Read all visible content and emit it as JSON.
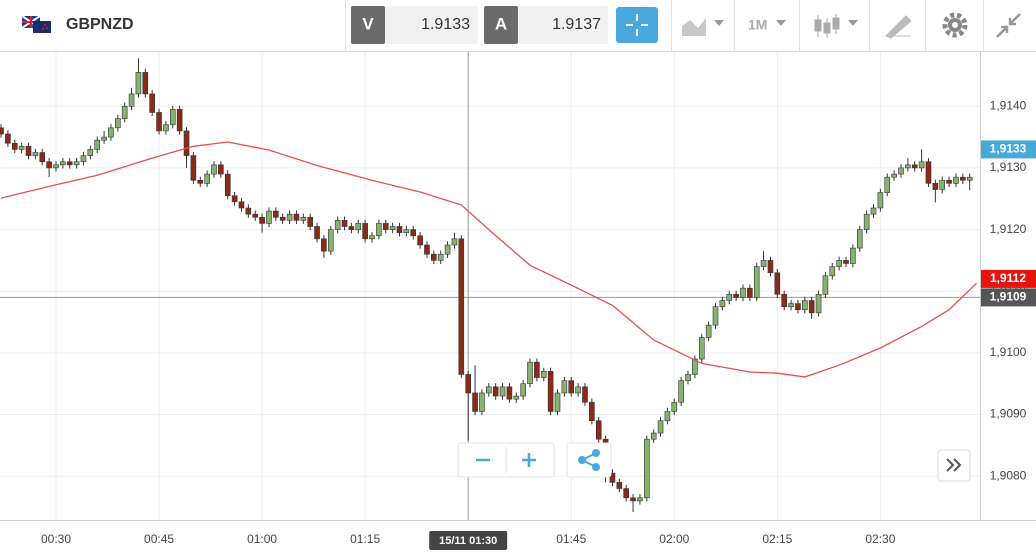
{
  "toolbar": {
    "symbol": "GBPNZD",
    "sell_label": "V",
    "sell_price": "1.9133",
    "buy_label": "A",
    "buy_price": "1.9137",
    "timeframe": "1M"
  },
  "chart_data": {
    "type": "candlestick",
    "up_color": "#86b26f",
    "down_color": "#8a2a18",
    "grid": true,
    "xlim": [
      21.85,
      164.5
    ],
    "ylim": [
      1.90729,
      1.91488
    ],
    "xticks": [
      {
        "value": 30,
        "label": "00:30"
      },
      {
        "value": 45,
        "label": "00:45"
      },
      {
        "value": 60,
        "label": "01:00"
      },
      {
        "value": 75,
        "label": "01:15"
      },
      {
        "value": 90,
        "label": "01:30"
      },
      {
        "value": 105,
        "label": "01:45"
      },
      {
        "value": 120,
        "label": "02:00"
      },
      {
        "value": 135,
        "label": "02:15"
      },
      {
        "value": 150,
        "label": "02:30"
      }
    ],
    "yticks": [
      {
        "value": 1.908,
        "label": "1,9080"
      },
      {
        "value": 1.909,
        "label": "1,9090"
      },
      {
        "value": 1.91,
        "label": "1,9100"
      },
      {
        "value": 1.911,
        "label": "1,9110"
      },
      {
        "value": 1.912,
        "label": "1,9120"
      },
      {
        "value": 1.913,
        "label": "1,9130"
      },
      {
        "value": 1.914,
        "label": "1,9140"
      }
    ],
    "x": [
      22,
      23,
      24,
      25,
      26,
      27,
      28,
      29,
      30,
      31,
      32,
      33,
      34,
      35,
      36,
      37,
      38,
      39,
      40,
      41,
      42,
      43,
      44,
      45,
      46,
      47,
      48,
      49,
      50,
      51,
      52,
      53,
      54,
      55,
      56,
      57,
      58,
      59,
      60,
      61,
      62,
      63,
      64,
      65,
      66,
      67,
      68,
      69,
      70,
      71,
      72,
      73,
      74,
      75,
      76,
      77,
      78,
      79,
      80,
      81,
      82,
      83,
      84,
      85,
      86,
      87,
      88,
      89,
      90,
      91,
      92,
      93,
      94,
      95,
      96,
      97,
      98,
      99,
      100,
      101,
      102,
      103,
      104,
      105,
      106,
      107,
      108,
      109,
      110,
      111,
      112,
      113,
      114,
      115,
      116,
      117,
      118,
      119,
      120,
      121,
      122,
      123,
      124,
      125,
      126,
      127,
      128,
      129,
      130,
      131,
      132,
      133,
      134,
      135,
      136,
      137,
      138,
      139,
      140,
      141,
      142,
      143,
      144,
      145,
      146,
      147,
      148,
      149,
      150,
      151,
      152,
      153,
      154,
      155,
      156,
      157,
      158,
      159,
      160,
      161,
      162,
      163
    ],
    "open": [
      1.91365,
      1.91355,
      1.9134,
      1.9133,
      1.91335,
      1.9132,
      1.91325,
      1.9131,
      1.913,
      1.91305,
      1.9131,
      1.91305,
      1.9131,
      1.9132,
      1.9133,
      1.91345,
      1.9135,
      1.91365,
      1.9138,
      1.914,
      1.9142,
      1.91455,
      1.9142,
      1.9139,
      1.9136,
      1.9137,
      1.91395,
      1.9136,
      1.9132,
      1.9128,
      1.91275,
      1.9129,
      1.91305,
      1.9129,
      1.91255,
      1.91245,
      1.91235,
      1.91225,
      1.9122,
      1.9121,
      1.9123,
      1.9122,
      1.91215,
      1.91225,
      1.91215,
      1.9122,
      1.91205,
      1.91185,
      1.91165,
      1.912,
      1.91215,
      1.91205,
      1.912,
      1.9121,
      1.91185,
      1.9119,
      1.9121,
      1.912,
      1.91205,
      1.91195,
      1.912,
      1.9119,
      1.91175,
      1.9116,
      1.9115,
      1.9116,
      1.91175,
      1.91185,
      1.90965,
      1.90935,
      1.90905,
      1.90935,
      1.90945,
      1.9093,
      1.90945,
      1.90925,
      1.9093,
      1.9095,
      1.90985,
      1.9096,
      1.9097,
      1.90905,
      1.90935,
      1.90955,
      1.90935,
      1.90945,
      1.9092,
      1.9089,
      1.9086,
      1.90805,
      1.9079,
      1.9078,
      1.90765,
      1.9076,
      1.90765,
      1.9086,
      1.9087,
      1.9089,
      1.90905,
      1.9092,
      1.90955,
      1.90965,
      1.9099,
      1.91025,
      1.91045,
      1.91075,
      1.91085,
      1.91095,
      1.9109,
      1.91105,
      1.9109,
      1.9114,
      1.9115,
      1.9113,
      1.91095,
      1.91075,
      1.9108,
      1.9107,
      1.91085,
      1.91065,
      1.91095,
      1.91125,
      1.9114,
      1.9115,
      1.91145,
      1.9117,
      1.912,
      1.91225,
      1.91235,
      1.9126,
      1.91285,
      1.9129,
      1.913,
      1.91305,
      1.913,
      1.9131,
      1.91275,
      1.91265,
      1.9128,
      1.91275,
      1.91285,
      1.9128
    ],
    "high": [
      1.91371,
      1.91361,
      1.91346,
      1.91341,
      1.91341,
      1.91331,
      1.91331,
      1.91316,
      1.91311,
      1.91316,
      1.91316,
      1.91316,
      1.91326,
      1.91336,
      1.91351,
      1.9136,
      1.91371,
      1.91386,
      1.91406,
      1.9143,
      1.91478,
      1.91461,
      1.91426,
      1.91396,
      1.91376,
      1.91401,
      1.91401,
      1.91366,
      1.91326,
      1.91286,
      1.91296,
      1.91311,
      1.91311,
      1.91296,
      1.91261,
      1.91251,
      1.91241,
      1.91231,
      1.91226,
      1.91236,
      1.91236,
      1.91226,
      1.91231,
      1.91231,
      1.91226,
      1.91226,
      1.91211,
      1.91191,
      1.91206,
      1.91221,
      1.91221,
      1.91211,
      1.91216,
      1.91216,
      1.91196,
      1.91216,
      1.91216,
      1.91211,
      1.91211,
      1.91206,
      1.91206,
      1.91196,
      1.91181,
      1.91166,
      1.91166,
      1.91181,
      1.91195,
      1.91191,
      1.90971,
      1.9098,
      1.90941,
      1.90951,
      1.90951,
      1.90951,
      1.90951,
      1.90936,
      1.90956,
      1.90991,
      1.90991,
      1.90976,
      1.90976,
      1.90941,
      1.90961,
      1.90961,
      1.90951,
      1.90951,
      1.90926,
      1.90896,
      1.90866,
      1.90811,
      1.90796,
      1.90786,
      1.90771,
      1.90771,
      1.90866,
      1.90876,
      1.90896,
      1.90911,
      1.90926,
      1.90961,
      1.90971,
      1.90996,
      1.91031,
      1.91051,
      1.91081,
      1.91091,
      1.91101,
      1.91101,
      1.91111,
      1.91111,
      1.91146,
      1.91165,
      1.91156,
      1.91136,
      1.91101,
      1.91086,
      1.91086,
      1.91091,
      1.91091,
      1.91101,
      1.91131,
      1.91146,
      1.91156,
      1.91156,
      1.91176,
      1.91206,
      1.91231,
      1.91241,
      1.91266,
      1.91291,
      1.91296,
      1.91306,
      1.91316,
      1.91311,
      1.9133,
      1.91316,
      1.91281,
      1.91286,
      1.91286,
      1.91291,
      1.91291,
      1.91291
    ],
    "low": [
      1.91349,
      1.91334,
      1.91324,
      1.91324,
      1.91314,
      1.91314,
      1.91304,
      1.91285,
      1.91294,
      1.91299,
      1.91299,
      1.91299,
      1.91304,
      1.91314,
      1.91324,
      1.91339,
      1.91344,
      1.91359,
      1.91374,
      1.91394,
      1.91414,
      1.91414,
      1.91384,
      1.91354,
      1.91354,
      1.91364,
      1.91354,
      1.913,
      1.91274,
      1.91269,
      1.91269,
      1.91284,
      1.91284,
      1.91249,
      1.91239,
      1.91229,
      1.91219,
      1.91214,
      1.91195,
      1.91204,
      1.91214,
      1.91209,
      1.91209,
      1.91209,
      1.91209,
      1.91199,
      1.91179,
      1.91154,
      1.91159,
      1.91194,
      1.91199,
      1.91194,
      1.91194,
      1.91179,
      1.91179,
      1.91184,
      1.91194,
      1.91194,
      1.91189,
      1.91189,
      1.91184,
      1.91169,
      1.91154,
      1.91144,
      1.91144,
      1.91154,
      1.91169,
      1.90959,
      1.90858,
      1.90899,
      1.90899,
      1.90929,
      1.90924,
      1.90924,
      1.90919,
      1.90919,
      1.90924,
      1.90944,
      1.90954,
      1.90954,
      1.90899,
      1.90899,
      1.90929,
      1.90929,
      1.90929,
      1.90914,
      1.90884,
      1.90854,
      1.9079,
      1.90784,
      1.90774,
      1.90759,
      1.90742,
      1.90754,
      1.90759,
      1.90854,
      1.90864,
      1.90884,
      1.90899,
      1.90914,
      1.90949,
      1.90959,
      1.90984,
      1.91019,
      1.91039,
      1.91069,
      1.91079,
      1.91084,
      1.91084,
      1.91084,
      1.91084,
      1.91134,
      1.91124,
      1.91089,
      1.91069,
      1.91069,
      1.91064,
      1.91064,
      1.91055,
      1.91059,
      1.91089,
      1.91119,
      1.91134,
      1.91139,
      1.91139,
      1.91164,
      1.91194,
      1.91219,
      1.91229,
      1.91254,
      1.91279,
      1.91284,
      1.91294,
      1.91294,
      1.91294,
      1.91269,
      1.91244,
      1.91259,
      1.91269,
      1.91269,
      1.91274,
      1.91264
    ],
    "close": [
      1.91355,
      1.9134,
      1.9133,
      1.91335,
      1.9132,
      1.91325,
      1.9131,
      1.913,
      1.91305,
      1.9131,
      1.91305,
      1.9131,
      1.9132,
      1.9133,
      1.91345,
      1.9135,
      1.91365,
      1.9138,
      1.914,
      1.9142,
      1.91455,
      1.9142,
      1.9139,
      1.9136,
      1.9137,
      1.91395,
      1.9136,
      1.9132,
      1.9128,
      1.91275,
      1.9129,
      1.91305,
      1.9129,
      1.91255,
      1.91245,
      1.91235,
      1.91225,
      1.9122,
      1.9121,
      1.9123,
      1.9122,
      1.91215,
      1.91225,
      1.91215,
      1.9122,
      1.91205,
      1.91185,
      1.91165,
      1.912,
      1.91215,
      1.91205,
      1.912,
      1.9121,
      1.91185,
      1.9119,
      1.9121,
      1.912,
      1.91205,
      1.91195,
      1.912,
      1.9119,
      1.91175,
      1.9116,
      1.9115,
      1.9116,
      1.91175,
      1.91185,
      1.90965,
      1.90935,
      1.90905,
      1.90935,
      1.90945,
      1.9093,
      1.90945,
      1.90925,
      1.9093,
      1.9095,
      1.90985,
      1.9096,
      1.9097,
      1.90905,
      1.90935,
      1.90955,
      1.90935,
      1.90945,
      1.9092,
      1.9089,
      1.9086,
      1.90805,
      1.9079,
      1.9078,
      1.90765,
      1.9076,
      1.90765,
      1.9086,
      1.9087,
      1.9089,
      1.90905,
      1.9092,
      1.90955,
      1.90965,
      1.9099,
      1.91025,
      1.91045,
      1.91075,
      1.91085,
      1.91095,
      1.9109,
      1.91105,
      1.9109,
      1.9114,
      1.9115,
      1.9113,
      1.91095,
      1.91075,
      1.9108,
      1.9107,
      1.91085,
      1.91065,
      1.91095,
      1.91125,
      1.9114,
      1.9115,
      1.91145,
      1.9117,
      1.912,
      1.91225,
      1.91235,
      1.9126,
      1.91285,
      1.9129,
      1.913,
      1.91305,
      1.913,
      1.9131,
      1.91275,
      1.91265,
      1.9128,
      1.91275,
      1.91285,
      1.9128,
      1.91285
    ],
    "ma": {
      "color": "#e8504a",
      "x": [
        22,
        29,
        36,
        44,
        50,
        55,
        61,
        68,
        76,
        83,
        89,
        93,
        99,
        105,
        111,
        117,
        124,
        131,
        135,
        139,
        144,
        150,
        156,
        160,
        164
      ],
      "values": [
        1.91251,
        1.9127,
        1.91288,
        1.91316,
        1.91335,
        1.91342,
        1.91329,
        1.91304,
        1.9128,
        1.91261,
        1.9124,
        1.912,
        1.91142,
        1.9111,
        1.91077,
        1.91021,
        1.90983,
        1.90969,
        1.90967,
        1.90961,
        1.9098,
        1.91008,
        1.91043,
        1.9107,
        1.91113
      ]
    },
    "markers": [
      {
        "value": 1.9133,
        "label": "1,9133",
        "color": "#4aa8d8"
      },
      {
        "value": 1.9112,
        "label": "1,9112",
        "color": "#e8130f"
      }
    ],
    "crosshair": {
      "x": 90,
      "y": 1.9109,
      "x_label": "15/11 01:30",
      "y_label": "1,9109"
    }
  }
}
